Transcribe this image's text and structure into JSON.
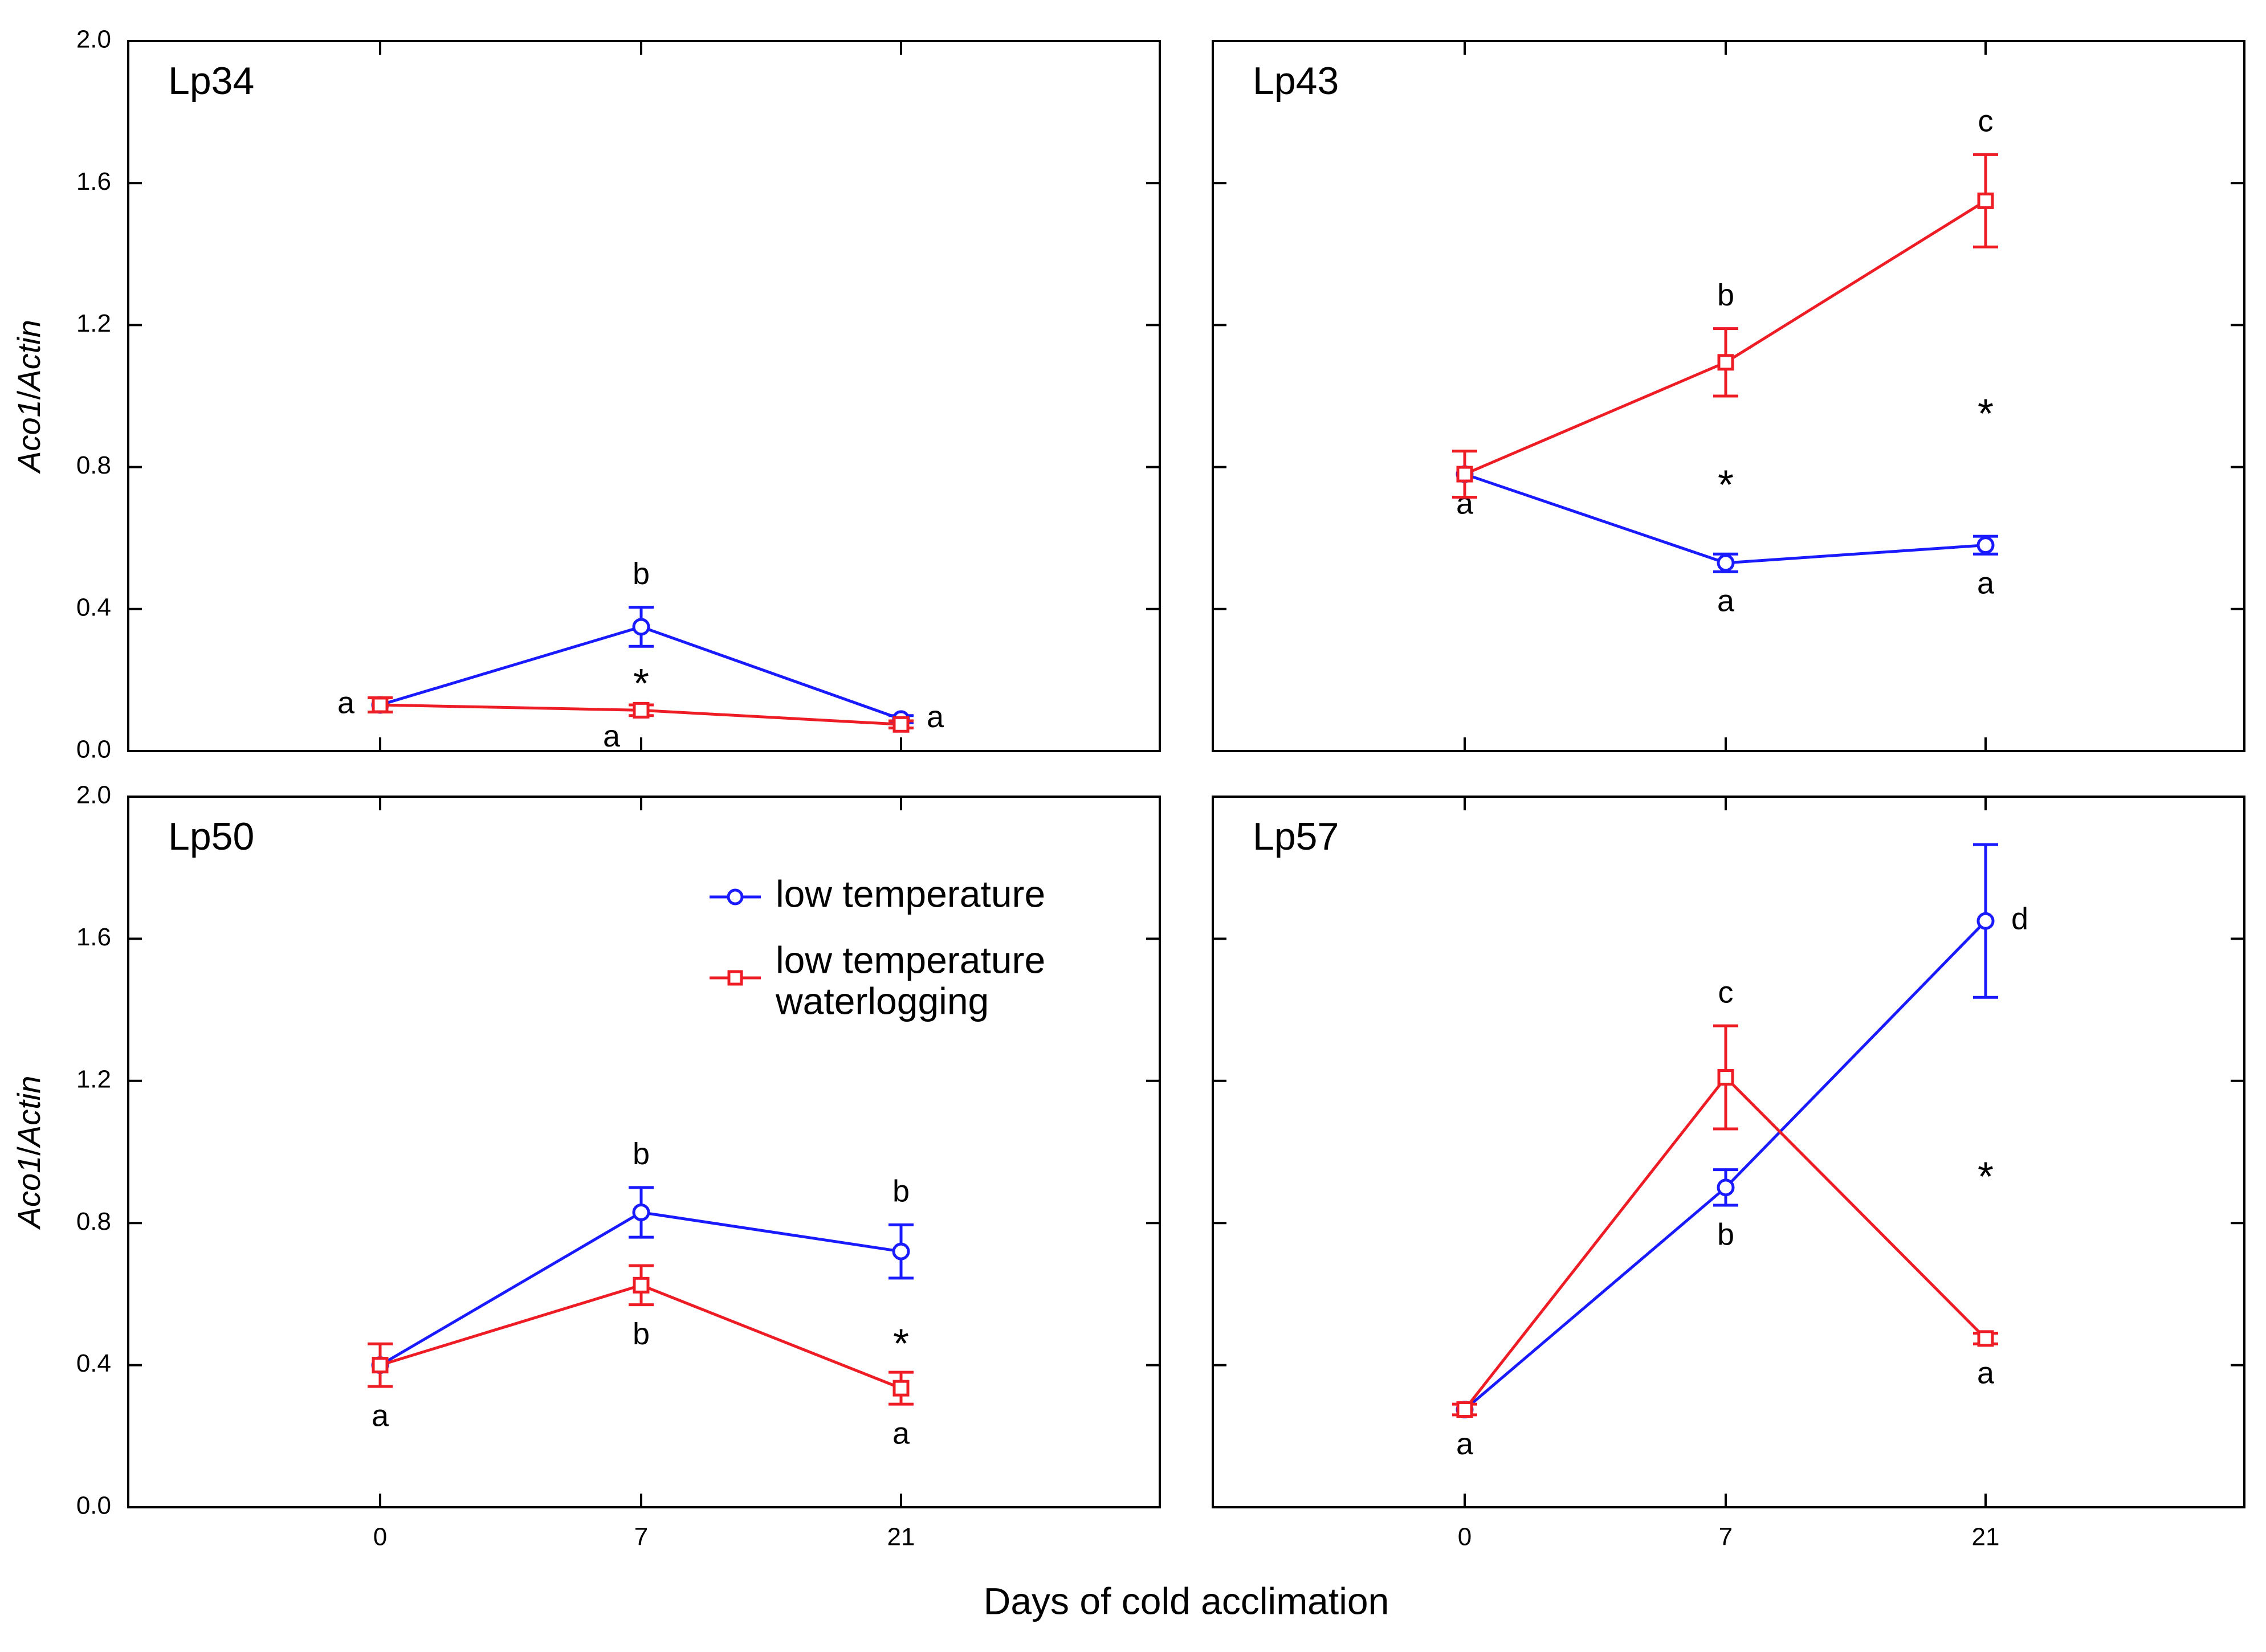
{
  "chart_data": {
    "type": "line",
    "layout": "2x2 panels with shared axes",
    "shared_xlabel": "Days of cold acclimation",
    "ylabel_parts": [
      "Aco1",
      "/",
      "Actin"
    ],
    "categories": [
      "0",
      "7",
      "21"
    ],
    "ylim": [
      0,
      2.0
    ],
    "yticks": [
      "0.0",
      "0.4",
      "0.8",
      "1.2",
      "1.6",
      "2.0"
    ],
    "legend": {
      "placement": "upper-center of panel Lp50",
      "entries": [
        {
          "lines": [
            "low temperature"
          ],
          "marker": "circle",
          "color": "#1a1aff"
        },
        {
          "lines": [
            "low temperature",
            "waterlogging"
          ],
          "marker": "square",
          "color": "#ee1c25"
        }
      ]
    },
    "panels": [
      {
        "title": "Lp34",
        "series": [
          {
            "name": "low temperature",
            "color": "#1a1aff",
            "marker": "circle",
            "values": [
              0.13,
              0.35,
              0.09
            ],
            "errors": [
              0.02,
              0.055,
              0.01
            ],
            "letters": [
              {
                "text": "",
                "at": 0,
                "pos": "left"
              },
              {
                "text": "b",
                "at": 1,
                "pos": "above"
              },
              {
                "text": "a",
                "at": 2,
                "pos": "right"
              }
            ]
          },
          {
            "name": "low temperature waterlogging",
            "color": "#ee1c25",
            "marker": "square",
            "values": [
              0.13,
              0.115,
              0.075
            ],
            "errors": [
              0.02,
              0.015,
              0.01
            ],
            "letters": [
              {
                "text": "a",
                "at": 0,
                "pos": "left"
              },
              {
                "text": "a",
                "at": 1,
                "pos": "below-left"
              },
              {
                "text": "",
                "at": 2,
                "pos": "right"
              }
            ]
          }
        ],
        "asterisks": [
          {
            "at": 1,
            "y": 0.21
          }
        ]
      },
      {
        "title": "Lp43",
        "series": [
          {
            "name": "low temperature",
            "color": "#1a1aff",
            "marker": "circle",
            "values": [
              0.78,
              0.53,
              0.58
            ],
            "errors": [
              0.0,
              0.025,
              0.025
            ],
            "letters": [
              {
                "text": "a",
                "at": 0,
                "pos": "below"
              },
              {
                "text": "a",
                "at": 1,
                "pos": "below"
              },
              {
                "text": "a",
                "at": 2,
                "pos": "below"
              }
            ]
          },
          {
            "name": "low temperature waterlogging",
            "color": "#ee1c25",
            "marker": "square",
            "values": [
              0.78,
              1.095,
              1.55
            ],
            "errors": [
              0.065,
              0.095,
              0.13
            ],
            "letters": [
              {
                "text": "",
                "at": 0,
                "pos": "below"
              },
              {
                "text": "b",
                "at": 1,
                "pos": "above"
              },
              {
                "text": "c",
                "at": 2,
                "pos": "above"
              }
            ]
          }
        ],
        "asterisks": [
          {
            "at": 1,
            "y": 0.77
          },
          {
            "at": 2,
            "y": 0.97
          }
        ]
      },
      {
        "title": "Lp50",
        "series": [
          {
            "name": "low temperature",
            "color": "#1a1aff",
            "marker": "circle",
            "values": [
              0.4,
              0.83,
              0.72
            ],
            "errors": [
              0.0,
              0.07,
              0.075
            ],
            "letters": [
              {
                "text": "",
                "at": 0,
                "pos": "below"
              },
              {
                "text": "b",
                "at": 1,
                "pos": "above"
              },
              {
                "text": "b",
                "at": 2,
                "pos": "above"
              }
            ]
          },
          {
            "name": "low temperature waterlogging",
            "color": "#ee1c25",
            "marker": "square",
            "values": [
              0.4,
              0.625,
              0.335
            ],
            "errors": [
              0.06,
              0.055,
              0.045
            ],
            "letters": [
              {
                "text": "a",
                "at": 0,
                "pos": "below"
              },
              {
                "text": "b",
                "at": 1,
                "pos": "below"
              },
              {
                "text": "a",
                "at": 2,
                "pos": "below"
              }
            ]
          }
        ],
        "asterisks": [
          {
            "at": 2,
            "y": 0.48
          }
        ]
      },
      {
        "title": "Lp57",
        "series": [
          {
            "name": "low temperature",
            "color": "#1a1aff",
            "marker": "circle",
            "values": [
              0.275,
              0.9,
              1.65
            ],
            "errors": [
              0.0,
              0.05,
              0.215
            ],
            "letters": [
              {
                "text": "",
                "at": 0,
                "pos": "below"
              },
              {
                "text": "b",
                "at": 1,
                "pos": "below"
              },
              {
                "text": "d",
                "at": 2,
                "pos": "right"
              }
            ]
          },
          {
            "name": "low temperature waterlogging",
            "color": "#ee1c25",
            "marker": "square",
            "values": [
              0.275,
              1.21,
              0.475
            ],
            "errors": [
              0.015,
              0.145,
              0.015
            ],
            "letters": [
              {
                "text": "a",
                "at": 0,
                "pos": "below"
              },
              {
                "text": "c",
                "at": 1,
                "pos": "above"
              },
              {
                "text": "a",
                "at": 2,
                "pos": "below"
              }
            ]
          }
        ],
        "asterisks": [
          {
            "at": 2,
            "y": 0.95
          }
        ]
      }
    ]
  }
}
